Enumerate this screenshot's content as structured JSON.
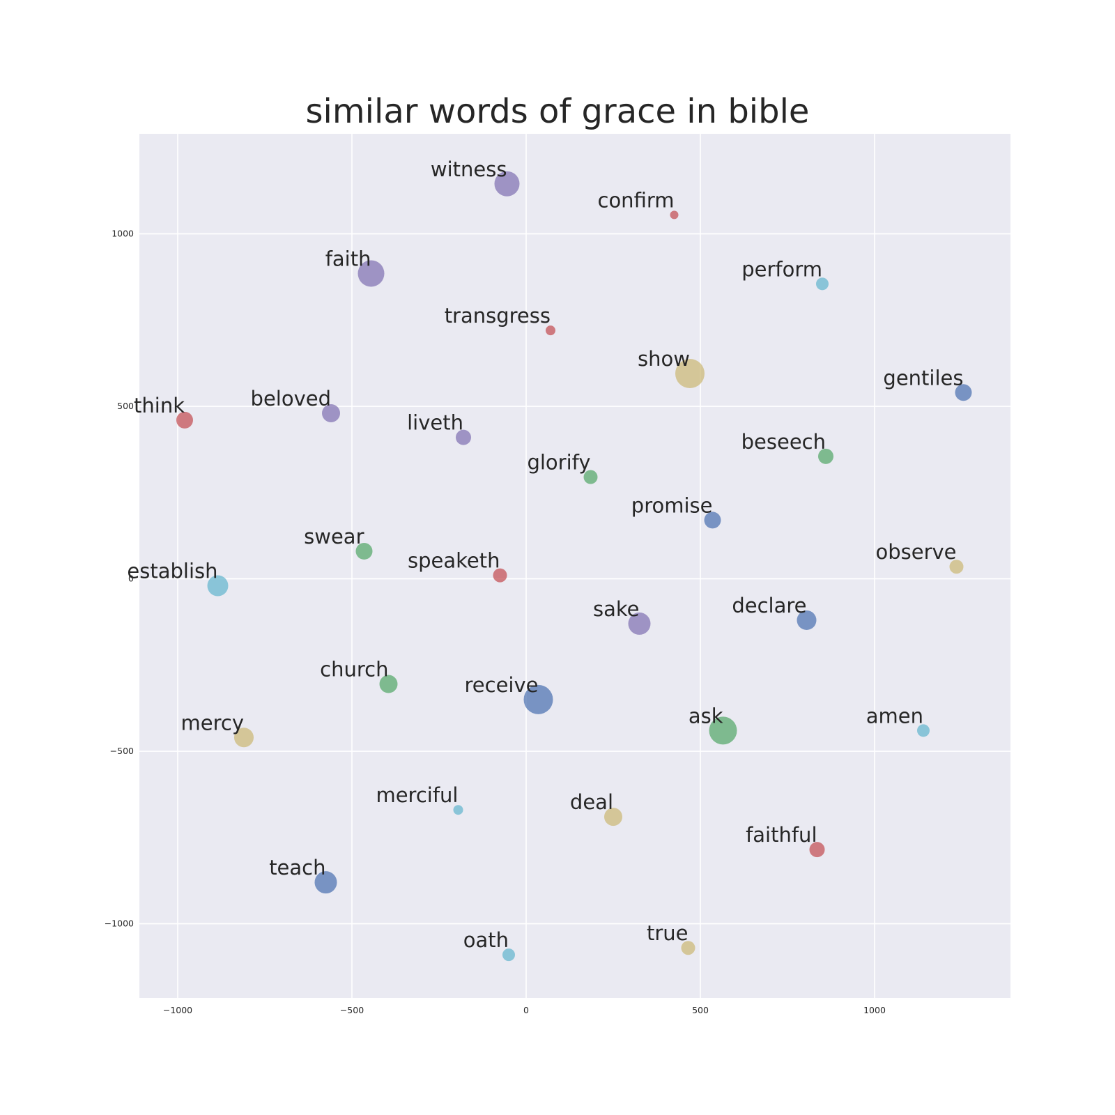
{
  "chart_data": {
    "type": "scatter",
    "title": "similar words of grace in bible",
    "xlabel": "",
    "ylabel": "",
    "xlim": [
      -1110,
      1390
    ],
    "ylim": [
      -1215,
      1290
    ],
    "xticks": [
      -1000,
      -500,
      0,
      500,
      1000
    ],
    "xtick_labels": [
      "−1000",
      "−500",
      "0",
      "500",
      "1000"
    ],
    "yticks": [
      -1000,
      -500,
      0,
      500,
      1000
    ],
    "ytick_labels": [
      "−1000",
      "−500",
      "0",
      "500",
      "1000"
    ],
    "grid": true,
    "background_color": "#eaeaf2",
    "grid_color": "#ffffff",
    "palette": {
      "blue": "#4c72b0",
      "green": "#55a868",
      "red": "#c44e52",
      "purple": "#8172b2",
      "yellow": "#ccb974",
      "cyan": "#64b5cd"
    },
    "points": [
      {
        "label": "witness",
        "x": -55,
        "y": 1145,
        "size": 18,
        "color": "purple"
      },
      {
        "label": "confirm",
        "x": 425,
        "y": 1055,
        "size": 6,
        "color": "red"
      },
      {
        "label": "faith",
        "x": -445,
        "y": 885,
        "size": 19,
        "color": "purple"
      },
      {
        "label": "perform",
        "x": 850,
        "y": 855,
        "size": 9,
        "color": "cyan"
      },
      {
        "label": "transgress",
        "x": 70,
        "y": 720,
        "size": 7,
        "color": "red"
      },
      {
        "label": "show",
        "x": 470,
        "y": 595,
        "size": 21,
        "color": "yellow"
      },
      {
        "label": "gentiles",
        "x": 1255,
        "y": 540,
        "size": 12,
        "color": "blue"
      },
      {
        "label": "think",
        "x": -980,
        "y": 460,
        "size": 12,
        "color": "red"
      },
      {
        "label": "beloved",
        "x": -560,
        "y": 480,
        "size": 13,
        "color": "purple"
      },
      {
        "label": "liveth",
        "x": -180,
        "y": 410,
        "size": 11,
        "color": "purple"
      },
      {
        "label": "beseech",
        "x": 860,
        "y": 355,
        "size": 11,
        "color": "green"
      },
      {
        "label": "glorify",
        "x": 185,
        "y": 295,
        "size": 10,
        "color": "green"
      },
      {
        "label": "promise",
        "x": 535,
        "y": 170,
        "size": 12,
        "color": "blue"
      },
      {
        "label": "swear",
        "x": -465,
        "y": 80,
        "size": 12,
        "color": "green"
      },
      {
        "label": "observe",
        "x": 1235,
        "y": 35,
        "size": 10,
        "color": "yellow"
      },
      {
        "label": "establish",
        "x": -885,
        "y": -20,
        "size": 15,
        "color": "cyan"
      },
      {
        "label": "speaketh",
        "x": -75,
        "y": 10,
        "size": 10,
        "color": "red"
      },
      {
        "label": "sake",
        "x": 325,
        "y": -130,
        "size": 16,
        "color": "purple"
      },
      {
        "label": "declare",
        "x": 805,
        "y": -120,
        "size": 14,
        "color": "blue"
      },
      {
        "label": "church",
        "x": -395,
        "y": -305,
        "size": 13,
        "color": "green"
      },
      {
        "label": "receive",
        "x": 35,
        "y": -350,
        "size": 21,
        "color": "blue"
      },
      {
        "label": "mercy",
        "x": -810,
        "y": -460,
        "size": 14,
        "color": "yellow"
      },
      {
        "label": "ask",
        "x": 565,
        "y": -440,
        "size": 20,
        "color": "green"
      },
      {
        "label": "amen",
        "x": 1140,
        "y": -440,
        "size": 9,
        "color": "cyan"
      },
      {
        "label": "merciful",
        "x": -195,
        "y": -670,
        "size": 7,
        "color": "cyan"
      },
      {
        "label": "deal",
        "x": 250,
        "y": -690,
        "size": 13,
        "color": "yellow"
      },
      {
        "label": "faithful",
        "x": 835,
        "y": -785,
        "size": 11,
        "color": "red"
      },
      {
        "label": "teach",
        "x": -575,
        "y": -880,
        "size": 16,
        "color": "blue"
      },
      {
        "label": "true",
        "x": 465,
        "y": -1070,
        "size": 10,
        "color": "yellow"
      },
      {
        "label": "oath",
        "x": -50,
        "y": -1090,
        "size": 9,
        "color": "cyan"
      }
    ]
  }
}
